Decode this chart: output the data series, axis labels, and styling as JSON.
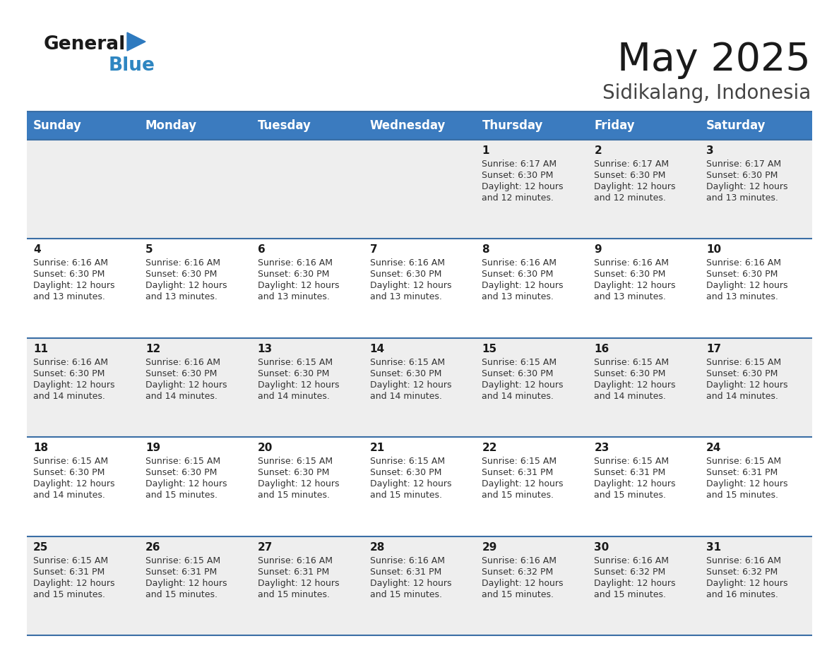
{
  "title": "May 2025",
  "subtitle": "Sidikalang, Indonesia",
  "header_bg": "#3b7bbf",
  "header_text_color": "#ffffff",
  "day_names": [
    "Sunday",
    "Monday",
    "Tuesday",
    "Wednesday",
    "Thursday",
    "Friday",
    "Saturday"
  ],
  "row_bg_light": "#eeeeee",
  "row_bg_white": "#ffffff",
  "cell_text_color": "#333333",
  "border_color": "#3a6ea5",
  "calendar_data": [
    [
      null,
      null,
      null,
      null,
      {
        "day": 1,
        "sunrise": "6:17 AM",
        "sunset": "6:30 PM",
        "daylight": "12 hours",
        "daylight2": "and 12 minutes."
      },
      {
        "day": 2,
        "sunrise": "6:17 AM",
        "sunset": "6:30 PM",
        "daylight": "12 hours",
        "daylight2": "and 12 minutes."
      },
      {
        "day": 3,
        "sunrise": "6:17 AM",
        "sunset": "6:30 PM",
        "daylight": "12 hours",
        "daylight2": "and 13 minutes."
      }
    ],
    [
      {
        "day": 4,
        "sunrise": "6:16 AM",
        "sunset": "6:30 PM",
        "daylight": "12 hours",
        "daylight2": "and 13 minutes."
      },
      {
        "day": 5,
        "sunrise": "6:16 AM",
        "sunset": "6:30 PM",
        "daylight": "12 hours",
        "daylight2": "and 13 minutes."
      },
      {
        "day": 6,
        "sunrise": "6:16 AM",
        "sunset": "6:30 PM",
        "daylight": "12 hours",
        "daylight2": "and 13 minutes."
      },
      {
        "day": 7,
        "sunrise": "6:16 AM",
        "sunset": "6:30 PM",
        "daylight": "12 hours",
        "daylight2": "and 13 minutes."
      },
      {
        "day": 8,
        "sunrise": "6:16 AM",
        "sunset": "6:30 PM",
        "daylight": "12 hours",
        "daylight2": "and 13 minutes."
      },
      {
        "day": 9,
        "sunrise": "6:16 AM",
        "sunset": "6:30 PM",
        "daylight": "12 hours",
        "daylight2": "and 13 minutes."
      },
      {
        "day": 10,
        "sunrise": "6:16 AM",
        "sunset": "6:30 PM",
        "daylight": "12 hours",
        "daylight2": "and 13 minutes."
      }
    ],
    [
      {
        "day": 11,
        "sunrise": "6:16 AM",
        "sunset": "6:30 PM",
        "daylight": "12 hours",
        "daylight2": "and 14 minutes."
      },
      {
        "day": 12,
        "sunrise": "6:16 AM",
        "sunset": "6:30 PM",
        "daylight": "12 hours",
        "daylight2": "and 14 minutes."
      },
      {
        "day": 13,
        "sunrise": "6:15 AM",
        "sunset": "6:30 PM",
        "daylight": "12 hours",
        "daylight2": "and 14 minutes."
      },
      {
        "day": 14,
        "sunrise": "6:15 AM",
        "sunset": "6:30 PM",
        "daylight": "12 hours",
        "daylight2": "and 14 minutes."
      },
      {
        "day": 15,
        "sunrise": "6:15 AM",
        "sunset": "6:30 PM",
        "daylight": "12 hours",
        "daylight2": "and 14 minutes."
      },
      {
        "day": 16,
        "sunrise": "6:15 AM",
        "sunset": "6:30 PM",
        "daylight": "12 hours",
        "daylight2": "and 14 minutes."
      },
      {
        "day": 17,
        "sunrise": "6:15 AM",
        "sunset": "6:30 PM",
        "daylight": "12 hours",
        "daylight2": "and 14 minutes."
      }
    ],
    [
      {
        "day": 18,
        "sunrise": "6:15 AM",
        "sunset": "6:30 PM",
        "daylight": "12 hours",
        "daylight2": "and 14 minutes."
      },
      {
        "day": 19,
        "sunrise": "6:15 AM",
        "sunset": "6:30 PM",
        "daylight": "12 hours",
        "daylight2": "and 15 minutes."
      },
      {
        "day": 20,
        "sunrise": "6:15 AM",
        "sunset": "6:30 PM",
        "daylight": "12 hours",
        "daylight2": "and 15 minutes."
      },
      {
        "day": 21,
        "sunrise": "6:15 AM",
        "sunset": "6:30 PM",
        "daylight": "12 hours",
        "daylight2": "and 15 minutes."
      },
      {
        "day": 22,
        "sunrise": "6:15 AM",
        "sunset": "6:31 PM",
        "daylight": "12 hours",
        "daylight2": "and 15 minutes."
      },
      {
        "day": 23,
        "sunrise": "6:15 AM",
        "sunset": "6:31 PM",
        "daylight": "12 hours",
        "daylight2": "and 15 minutes."
      },
      {
        "day": 24,
        "sunrise": "6:15 AM",
        "sunset": "6:31 PM",
        "daylight": "12 hours",
        "daylight2": "and 15 minutes."
      }
    ],
    [
      {
        "day": 25,
        "sunrise": "6:15 AM",
        "sunset": "6:31 PM",
        "daylight": "12 hours",
        "daylight2": "and 15 minutes."
      },
      {
        "day": 26,
        "sunrise": "6:15 AM",
        "sunset": "6:31 PM",
        "daylight": "12 hours",
        "daylight2": "and 15 minutes."
      },
      {
        "day": 27,
        "sunrise": "6:16 AM",
        "sunset": "6:31 PM",
        "daylight": "12 hours",
        "daylight2": "and 15 minutes."
      },
      {
        "day": 28,
        "sunrise": "6:16 AM",
        "sunset": "6:31 PM",
        "daylight": "12 hours",
        "daylight2": "and 15 minutes."
      },
      {
        "day": 29,
        "sunrise": "6:16 AM",
        "sunset": "6:32 PM",
        "daylight": "12 hours",
        "daylight2": "and 15 minutes."
      },
      {
        "day": 30,
        "sunrise": "6:16 AM",
        "sunset": "6:32 PM",
        "daylight": "12 hours",
        "daylight2": "and 15 minutes."
      },
      {
        "day": 31,
        "sunrise": "6:16 AM",
        "sunset": "6:32 PM",
        "daylight": "12 hours",
        "daylight2": "and 16 minutes."
      }
    ]
  ],
  "logo_color_general": "#1a1a1a",
  "logo_color_blue": "#2e86c1",
  "logo_triangle_color": "#2e7abf",
  "title_fontsize": 40,
  "subtitle_fontsize": 20,
  "header_fontsize": 12,
  "day_num_fontsize": 11,
  "cell_fontsize": 9
}
